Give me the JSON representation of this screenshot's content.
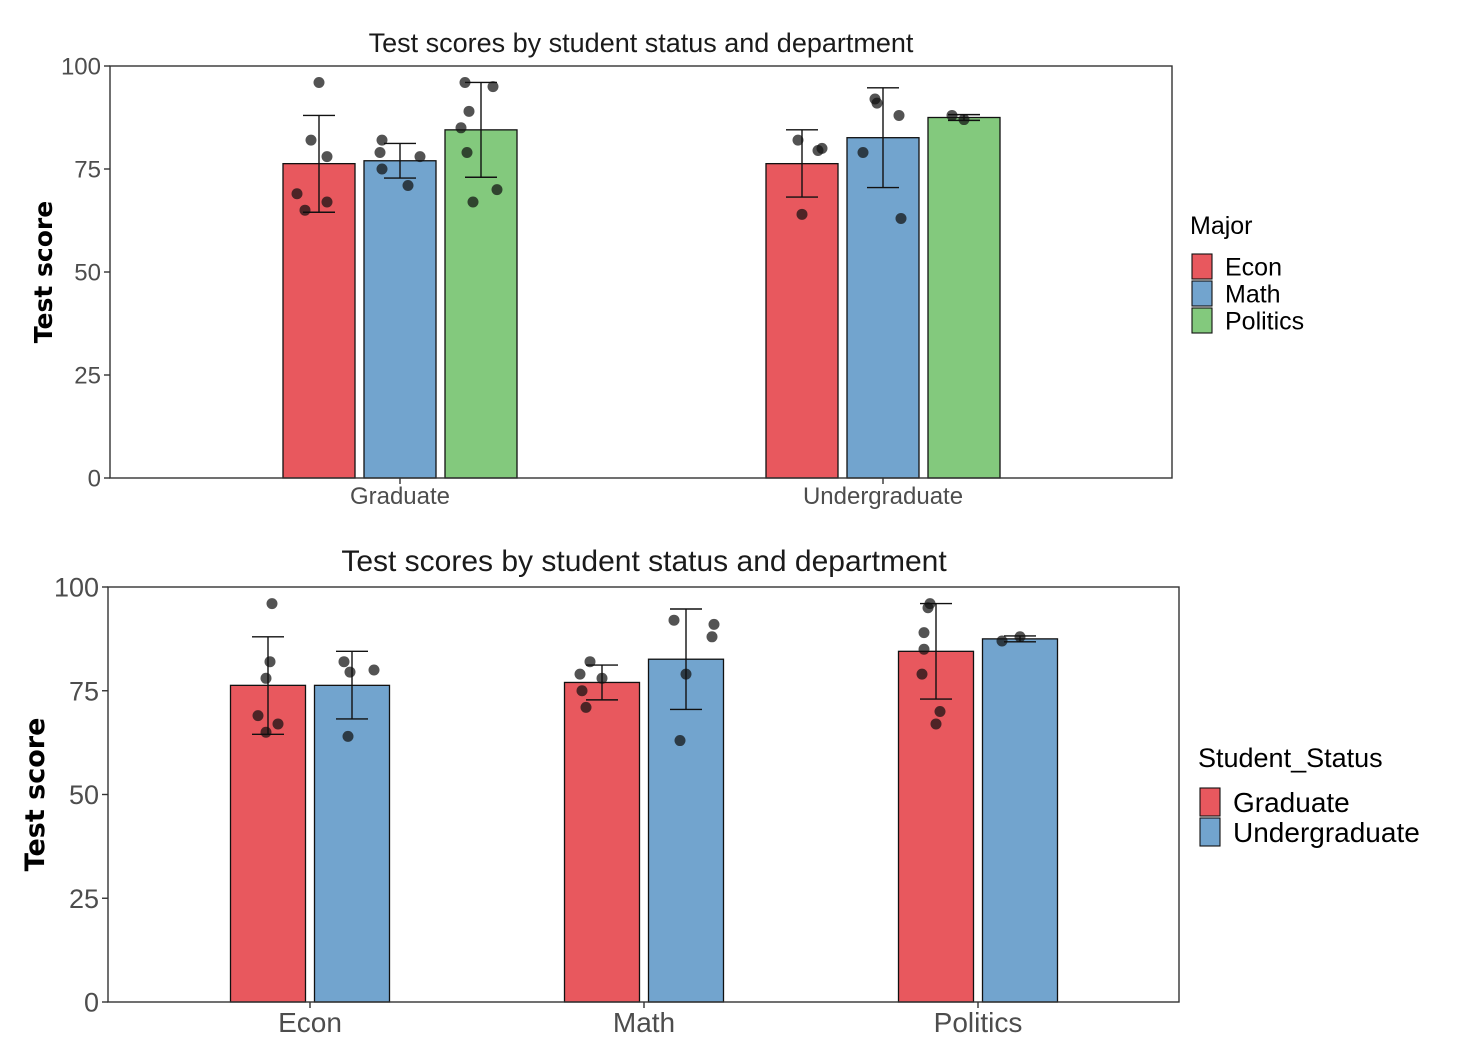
{
  "chart_data": [
    {
      "type": "bar",
      "title": "Test scores by student status and department",
      "xlabel": "",
      "ylabel": "Test score",
      "ylim": [
        0,
        100
      ],
      "yticks": [
        "0",
        "25",
        "50",
        "75",
        "100"
      ],
      "categories": [
        "Graduate",
        "Undergraduate"
      ],
      "legend_title": "Major",
      "legend_position": "right",
      "series": [
        {
          "name": "Econ",
          "color": "#E8585E",
          "values": [
            76.3,
            76.3
          ],
          "err_low": [
            64.5,
            68.2
          ],
          "err_high": [
            88.0,
            84.5
          ],
          "points": [
            [
              96,
              82,
              78,
              69,
              67,
              65
            ],
            [
              82,
              80,
              79.5,
              64
            ]
          ]
        },
        {
          "name": "Math",
          "color": "#72A4CE",
          "values": [
            77.0,
            82.6
          ],
          "err_low": [
            72.8,
            70.5
          ],
          "err_high": [
            81.2,
            94.7
          ],
          "points": [
            [
              82,
              79,
              78,
              75,
              71
            ],
            [
              92,
              91,
              88,
              79,
              63
            ]
          ]
        },
        {
          "name": "Politics",
          "color": "#83C97D",
          "values": [
            84.5,
            87.5
          ],
          "err_low": [
            73.0,
            86.8
          ],
          "err_high": [
            96.0,
            88.2
          ],
          "points": [
            [
              96,
              95,
              89,
              85,
              79,
              70,
              67
            ],
            [
              88,
              87
            ]
          ]
        }
      ]
    },
    {
      "type": "bar",
      "title": "Test scores by student status and department",
      "xlabel": "",
      "ylabel": "Test score",
      "ylim": [
        0,
        100
      ],
      "yticks": [
        "0",
        "25",
        "50",
        "75",
        "100"
      ],
      "categories": [
        "Econ",
        "Math",
        "Politics"
      ],
      "legend_title": "Student_Status",
      "legend_position": "right",
      "series": [
        {
          "name": "Graduate",
          "color": "#E8585E",
          "values": [
            76.3,
            77.0,
            84.5
          ],
          "err_low": [
            64.5,
            72.8,
            73.0
          ],
          "err_high": [
            88.0,
            81.2,
            96.0
          ],
          "points": [
            [
              96,
              82,
              78,
              69,
              67,
              65
            ],
            [
              82,
              79,
              78,
              75,
              71
            ],
            [
              96,
              95,
              89,
              85,
              79,
              70,
              67
            ]
          ]
        },
        {
          "name": "Undergraduate",
          "color": "#72A4CE",
          "values": [
            76.3,
            82.6,
            87.5
          ],
          "err_low": [
            68.2,
            70.5,
            86.8
          ],
          "err_high": [
            84.5,
            94.7,
            88.2
          ],
          "points": [
            [
              82,
              80,
              79.5,
              64
            ],
            [
              92,
              91,
              88,
              79,
              63
            ],
            [
              88,
              87
            ]
          ]
        }
      ]
    }
  ]
}
